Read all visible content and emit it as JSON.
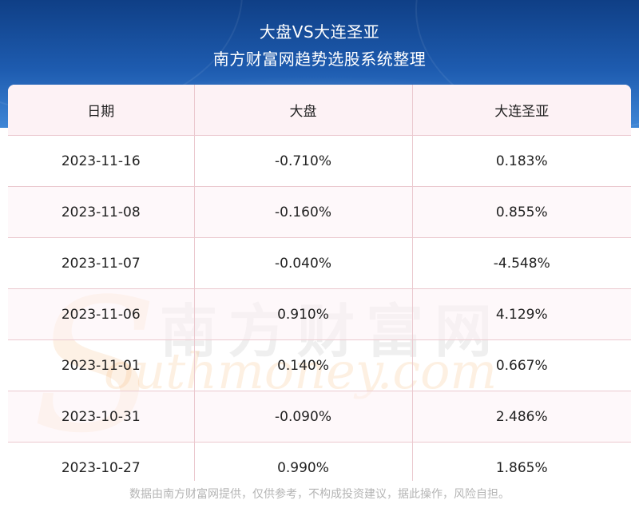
{
  "header": {
    "title": "大盘VS大连圣亚",
    "subtitle": "南方财富网趋势选股系统整理"
  },
  "table": {
    "columns": [
      "日期",
      "大盘",
      "大连圣亚"
    ],
    "rows": [
      [
        "2023-11-16",
        "-0.710%",
        "0.183%"
      ],
      [
        "2023-11-08",
        "-0.160%",
        "0.855%"
      ],
      [
        "2023-11-07",
        "-0.040%",
        "-4.548%"
      ],
      [
        "2023-11-06",
        "0.910%",
        "4.129%"
      ],
      [
        "2023-11-01",
        "0.140%",
        "0.667%"
      ],
      [
        "2023-10-31",
        "-0.090%",
        "2.486%"
      ],
      [
        "2023-10-27",
        "0.990%",
        "1.865%"
      ]
    ]
  },
  "watermark": {
    "cn": "南方财富网",
    "en_initial": "S",
    "en_rest": "outhmoney.com"
  },
  "footer": {
    "disclaimer": "数据由南方财富网提供，仅供参考，不构成投资建议，据此操作，风险自担。"
  }
}
